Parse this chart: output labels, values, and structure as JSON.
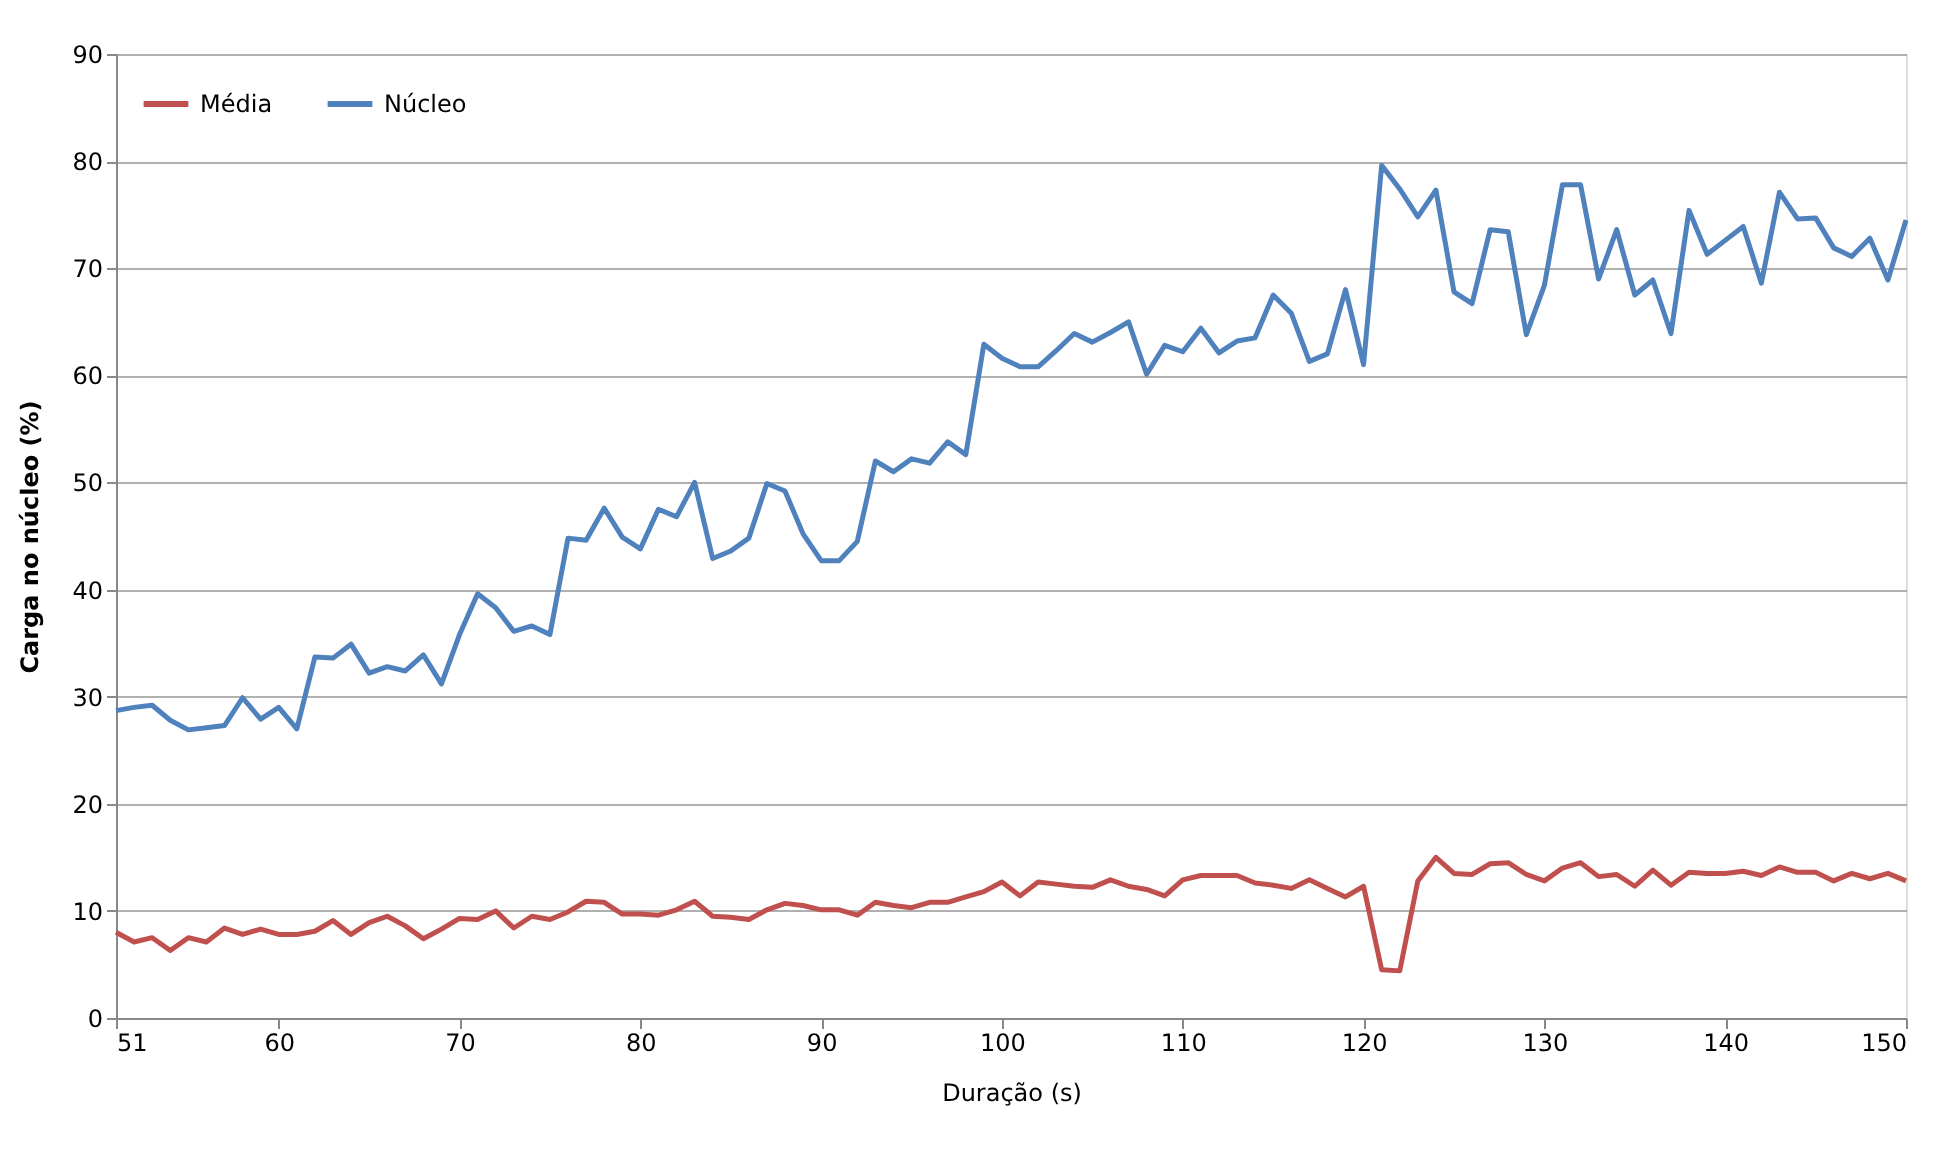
{
  "chart_data": {
    "type": "line",
    "xlabel": "Duração (s)",
    "ylabel": "Carga no núcleo (%)",
    "x": [
      51,
      52,
      53,
      54,
      55,
      56,
      57,
      58,
      59,
      60,
      61,
      62,
      63,
      64,
      65,
      66,
      67,
      68,
      69,
      70,
      71,
      72,
      73,
      74,
      75,
      76,
      77,
      78,
      79,
      80,
      81,
      82,
      83,
      84,
      85,
      86,
      87,
      88,
      89,
      90,
      91,
      92,
      93,
      94,
      95,
      96,
      97,
      98,
      99,
      100,
      101,
      102,
      103,
      104,
      105,
      106,
      107,
      108,
      109,
      110,
      111,
      112,
      113,
      114,
      115,
      116,
      117,
      118,
      119,
      120,
      121,
      122,
      123,
      124,
      125,
      126,
      127,
      128,
      129,
      130,
      131,
      132,
      133,
      134,
      135,
      136,
      137,
      138,
      139,
      140,
      141,
      142,
      143,
      144,
      145,
      146,
      147,
      148,
      149,
      150
    ],
    "series": [
      {
        "name": "Média",
        "color": "#c0504d",
        "values": [
          8,
          7.1,
          7.5,
          6.3,
          7.5,
          7.1,
          8.4,
          7.8,
          8.3,
          7.8,
          7.8,
          8.1,
          9.1,
          7.8,
          8.9,
          9.5,
          8.6,
          7.4,
          8.3,
          9.3,
          9.2,
          10,
          8.4,
          9.5,
          9.2,
          9.9,
          10.9,
          10.8,
          9.7,
          9.7,
          9.6,
          10.1,
          10.9,
          9.5,
          9.4,
          9.2,
          10.1,
          10.7,
          10.5,
          10.1,
          10.1,
          9.6,
          10.8,
          10.5,
          10.3,
          10.8,
          10.8,
          11.3,
          11.8,
          12.7,
          11.4,
          12.7,
          12.5,
          12.3,
          12.2,
          12.9,
          12.3,
          12,
          11.4,
          12.9,
          13.3,
          13.3,
          13.3,
          12.6,
          12.4,
          12.1,
          12.9,
          12.1,
          11.3,
          12.3,
          4.5,
          4.4,
          12.8,
          15,
          13.5,
          13.4,
          14.4,
          14.5,
          13.4,
          12.8,
          14,
          14.5,
          13.2,
          13.4,
          12.3,
          13.8,
          12.4,
          13.6,
          13.5,
          13.5,
          13.7,
          13.3,
          14.1,
          13.6,
          13.6,
          12.8,
          13.5,
          13,
          13.5,
          12.8
        ]
      },
      {
        "name": "Núcleo",
        "color": "#4f81bd",
        "values": [
          28.7,
          29,
          29.2,
          27.8,
          26.9,
          27.1,
          27.3,
          29.9,
          27.9,
          29,
          27,
          33.7,
          33.6,
          34.9,
          32.2,
          32.8,
          32.4,
          33.9,
          31.2,
          35.8,
          39.6,
          38.3,
          36.1,
          36.6,
          35.8,
          44.8,
          44.6,
          47.6,
          44.9,
          43.8,
          47.5,
          46.8,
          50,
          42.9,
          43.6,
          44.8,
          49.9,
          49.2,
          45.2,
          42.7,
          42.7,
          44.5,
          52,
          51,
          52.2,
          51.8,
          53.8,
          52.6,
          62.9,
          61.6,
          60.8,
          60.8,
          62.3,
          63.9,
          63.1,
          64,
          65,
          60.1,
          62.8,
          62.2,
          64.4,
          62.1,
          63.2,
          63.5,
          67.5,
          65.8,
          61.3,
          62,
          68,
          61,
          79.6,
          77.4,
          74.8,
          77.3,
          67.8,
          66.7,
          73.6,
          73.4,
          63.8,
          68.4,
          77.8,
          77.8,
          69,
          73.6,
          67.5,
          68.9,
          63.9,
          75.4,
          71.3,
          72.6,
          73.9,
          68.6,
          77.1,
          74.6,
          74.7,
          71.9,
          71.1,
          72.8,
          68.9,
          74.5
        ]
      }
    ],
    "xlim": [
      51,
      150
    ],
    "xticks": [
      51,
      60,
      70,
      80,
      90,
      100,
      110,
      120,
      130,
      140,
      150
    ],
    "ylim": [
      0,
      90
    ],
    "yticks": [
      0,
      10,
      20,
      30,
      40,
      50,
      60,
      70,
      80,
      90
    ],
    "grid": "y",
    "legend": "top left",
    "marker": "none",
    "line_style": "solid"
  }
}
